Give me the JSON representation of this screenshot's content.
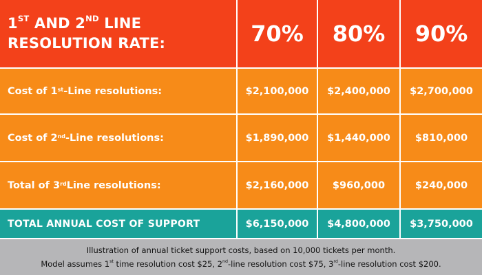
{
  "header": {
    "title_line1": {
      "a": "1",
      "a_sup": "ST",
      "b": " AND 2",
      "b_sup": "ND",
      "c": " LINE"
    },
    "title_line2": "RESOLUTION RATE:",
    "rates": [
      "70%",
      "80%",
      "90%"
    ]
  },
  "rows": [
    {
      "label_pre": "Cost of 1",
      "label_sup": "st",
      "label_post": "-Line resolutions:",
      "values": [
        "$2,100,000",
        "$2,400,000",
        "$2,700,000"
      ]
    },
    {
      "label_pre": "Cost of 2",
      "label_sup": "nd",
      "label_post": "-Line resolutions:",
      "values": [
        "$1,890,000",
        "$1,440,000",
        "$810,000"
      ]
    },
    {
      "label_pre": "Total of 3",
      "label_sup": "rd",
      "label_post": " Line resolutions:",
      "values": [
        "$2,160,000",
        "$960,000",
        "$240,000"
      ]
    }
  ],
  "total": {
    "label": "TOTAL ANNUAL COST OF SUPPORT",
    "values": [
      "$6,150,000",
      "$4,800,000",
      "$3,750,000"
    ]
  },
  "footer": {
    "line1": "Illustration of annual ticket support costs, based on 10,000 tickets per month.",
    "line2": {
      "p1": "Model assumes 1",
      "s1": "st",
      "p2": " time resolution cost $25, 2",
      "s2": "nd",
      "p3": "-line resolution cost $75, 3",
      "s3": "rd",
      "p4": "-line resolution cost $200."
    }
  },
  "colors": {
    "header_red": "#f3411a",
    "row_orange": "#f78b18",
    "total_teal": "#1aa39a",
    "footer_grey": "#b6b6b8"
  }
}
